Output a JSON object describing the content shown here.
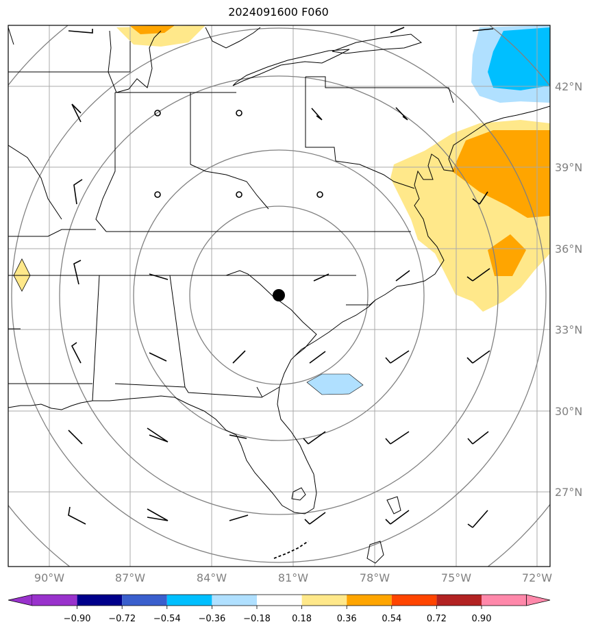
{
  "title": "2024091600 F060",
  "lon_labels": [
    "90°W",
    "87°W",
    "84°W",
    "81°W",
    "78°W",
    "75°W",
    "72°W"
  ],
  "lat_labels": [
    "42°N",
    "39°N",
    "36°N",
    "33°N",
    "30°N",
    "27°N"
  ],
  "colorbar": {
    "tick_labels": [
      "−0.90",
      "−0.72",
      "−0.54",
      "−0.36",
      "−0.18",
      "0.18",
      "0.36",
      "0.54",
      "0.72",
      "0.90"
    ],
    "colors": [
      "#9932cc",
      "#00008b",
      "#3a5fcd",
      "#00bfff",
      "#b0e0ff",
      "#ffffff",
      "#ffe88a",
      "#ffa500",
      "#ff4500",
      "#b22222",
      "#ff88aa"
    ]
  },
  "colors": {
    "grid": "#a9a9a9",
    "range_rings": "#808080",
    "coast": "#000000",
    "center_marker": "#000000"
  },
  "icons": {
    "center_marker": "filled-circle",
    "calm_wind": "open-circle",
    "wind": "wind-barb"
  }
}
